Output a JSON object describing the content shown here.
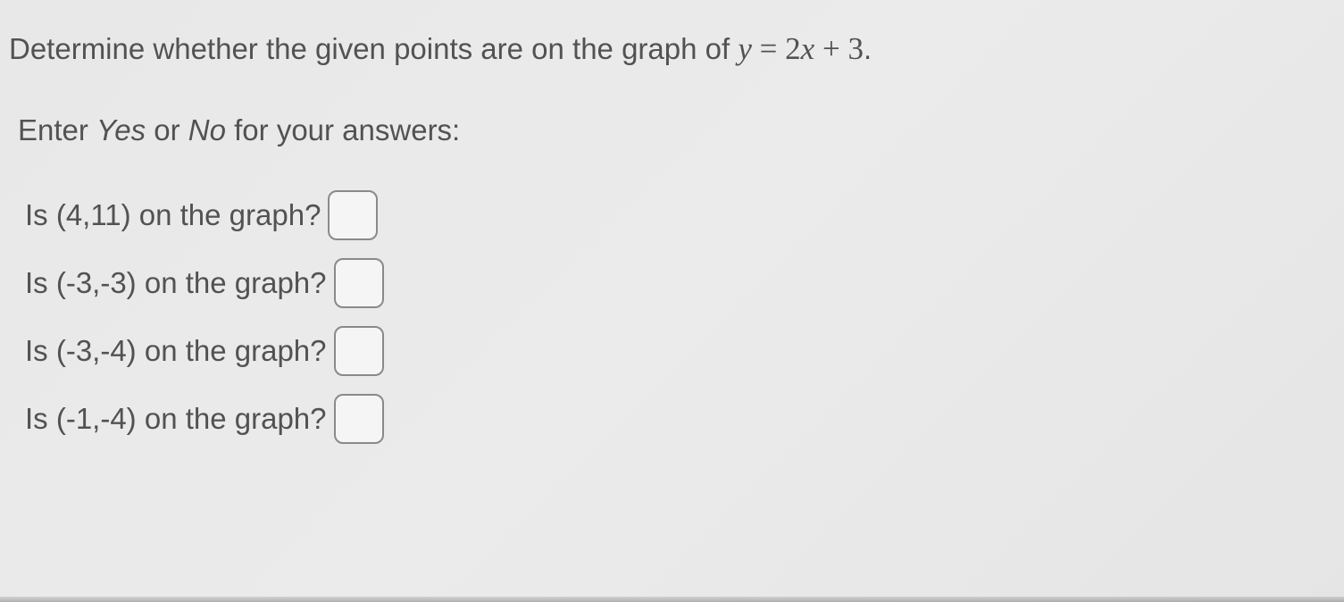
{
  "page": {
    "background_color": "#e8e8e8",
    "text_color": "#525252",
    "border_color": "#8a8a8a",
    "input_background": "#f5f5f5",
    "input_border_radius": 10,
    "main_fontsize": 33,
    "math_fontsize": 35
  },
  "prompt": {
    "prefix": "Determine whether the given points are on the graph of ",
    "equation_y": "y",
    "equation_eq": " = ",
    "equation_coef": "2",
    "equation_x": "x",
    "equation_plus": " + ",
    "equation_const": "3",
    "suffix": "."
  },
  "instruction": {
    "prefix": "Enter ",
    "yes": "Yes",
    "mid": " or ",
    "no": "No",
    "suffix": " for your answers:"
  },
  "questions": [
    {
      "label": "Is (4,11) on the graph?",
      "value": ""
    },
    {
      "label": "Is (-3,-3) on the graph?",
      "value": ""
    },
    {
      "label": "Is (-3,-4) on the graph?",
      "value": ""
    },
    {
      "label": "Is (-1,-4) on the graph?",
      "value": ""
    }
  ]
}
